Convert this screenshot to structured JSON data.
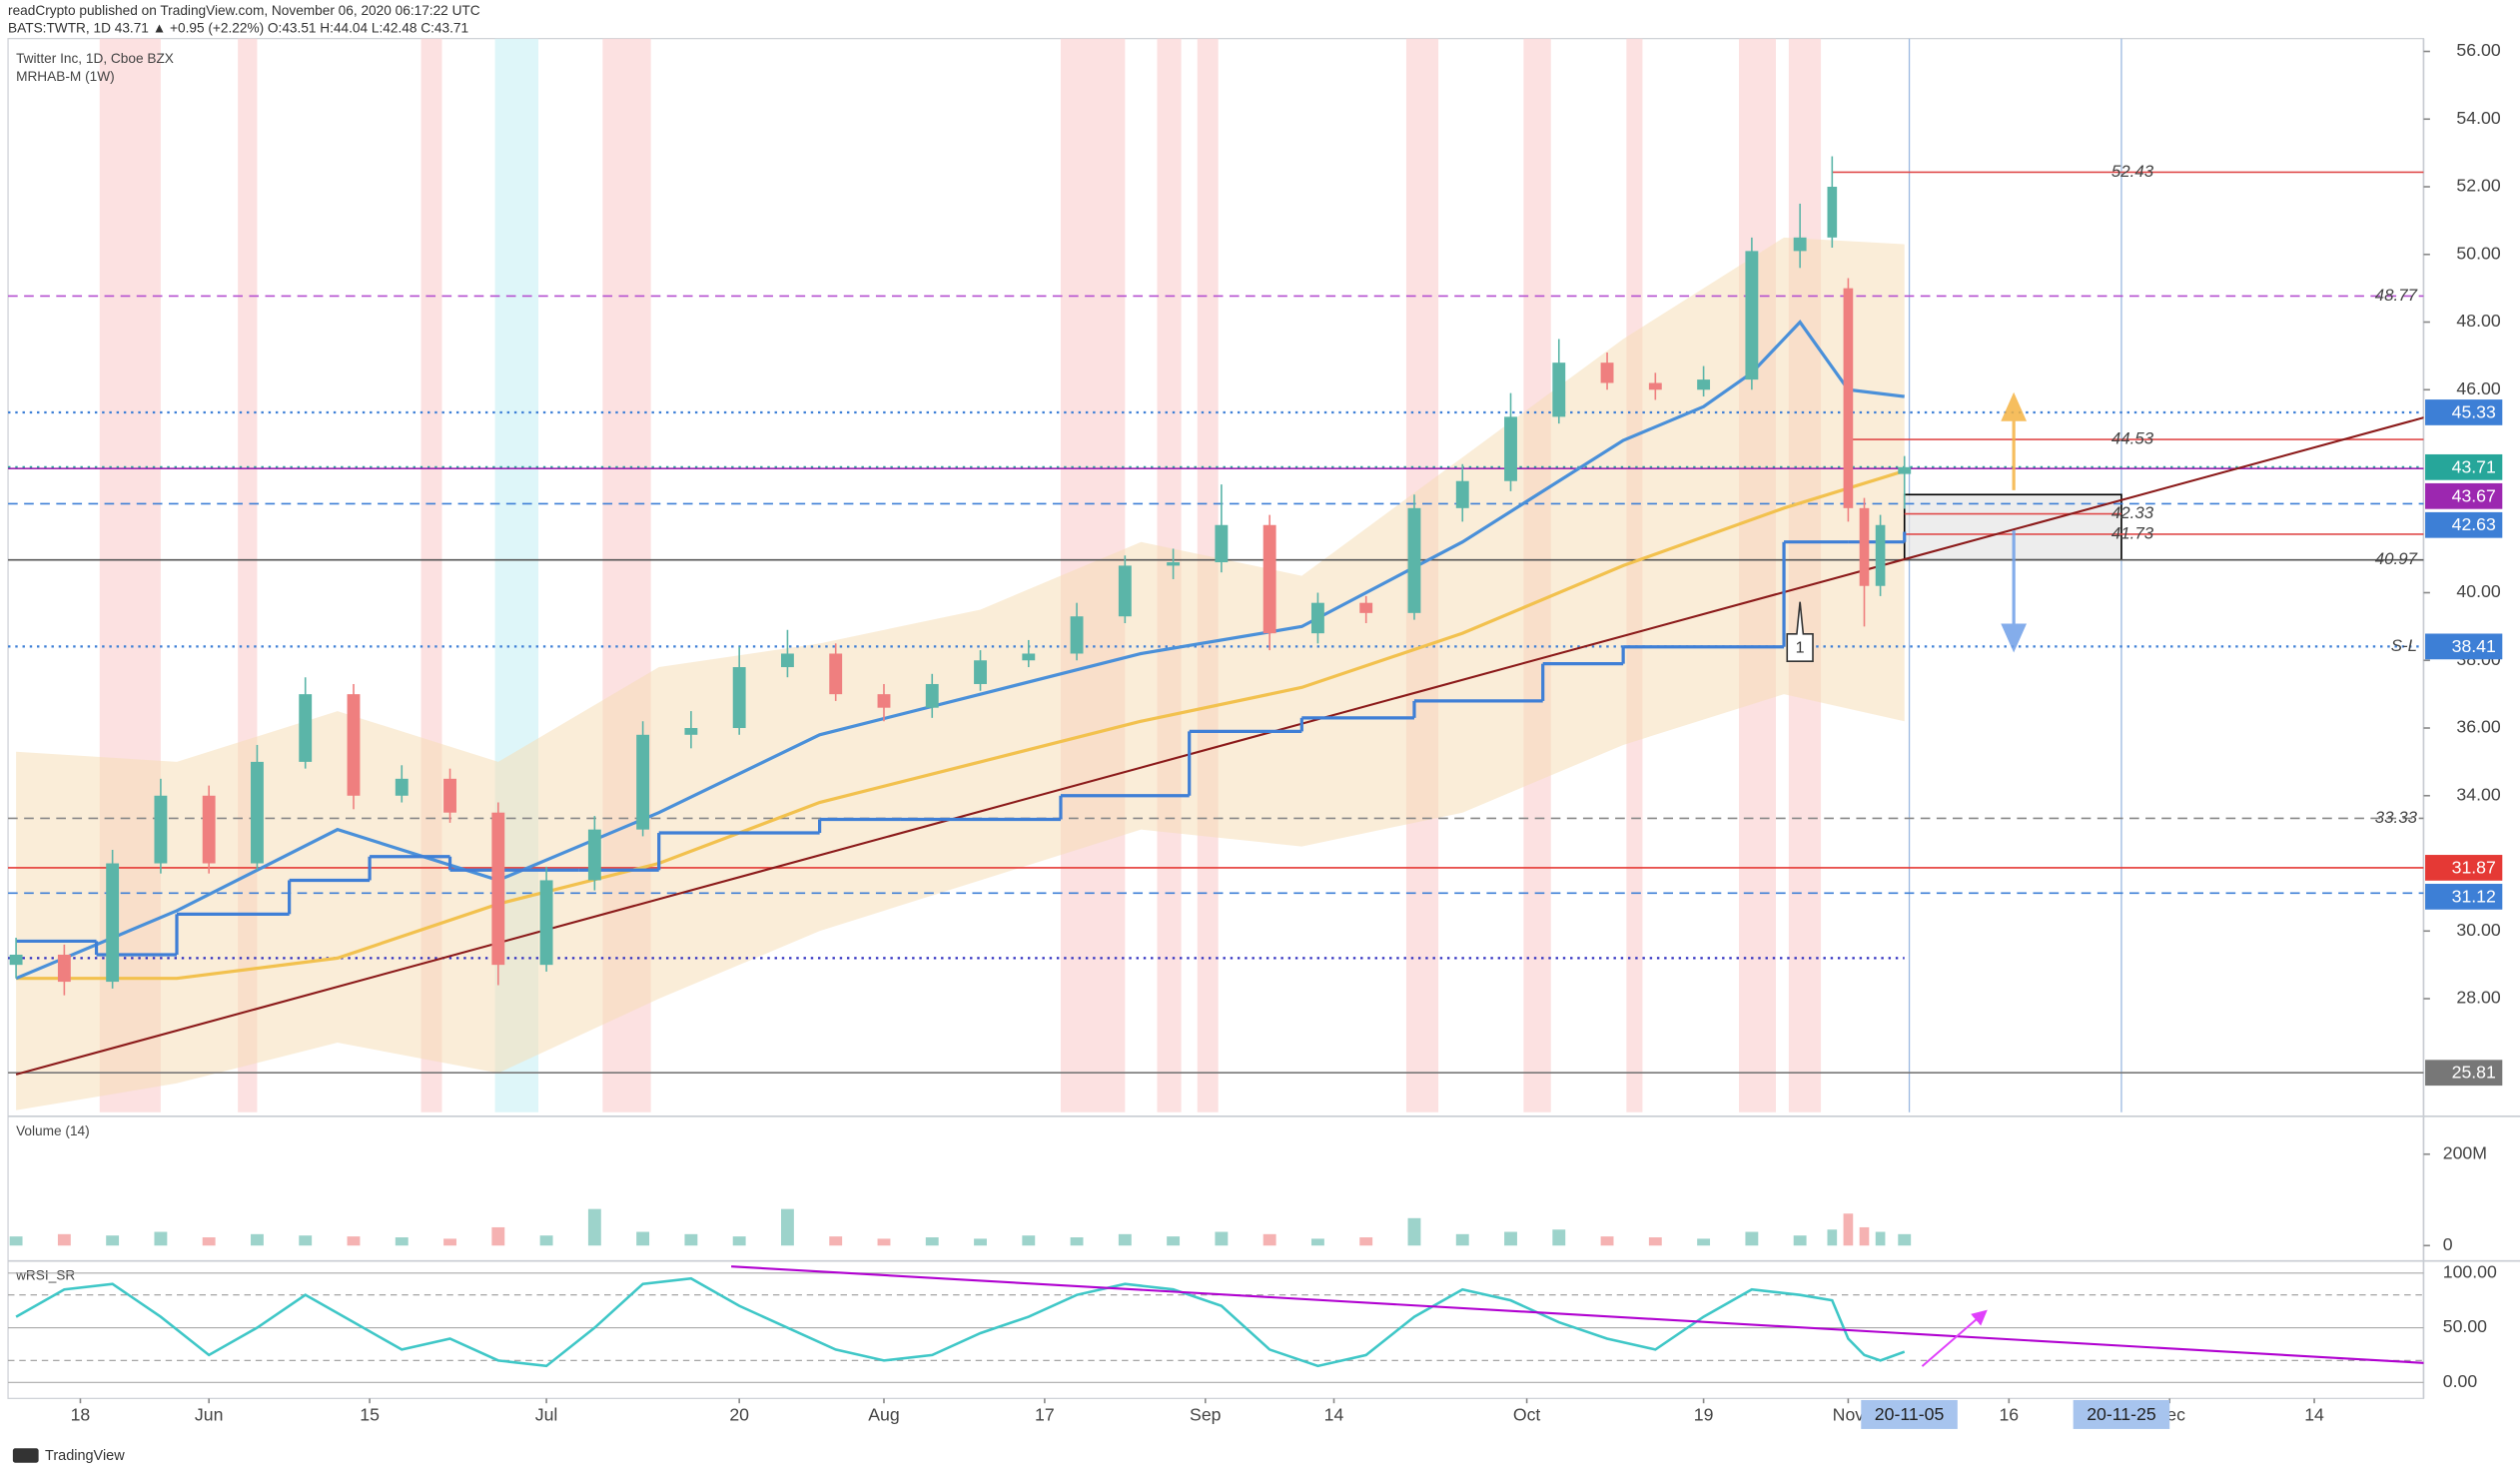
{
  "header": {
    "line1": "readCrypto published on TradingView.com, November 06, 2020 06:17:22 UTC",
    "line2": "BATS:TWTR, 1D 43.71 ▲ +0.95 (+2.22%) O:43.51 H:44.04 L:42.48 C:43.71"
  },
  "chart_data": {
    "type": "candlestick",
    "legend": [
      "Twitter Inc, 1D, Cboe BZX",
      "MRHAB-M (1W)"
    ],
    "xlim": [
      0,
      150
    ],
    "xticks": [
      {
        "value": 4,
        "label": "18"
      },
      {
        "value": 12,
        "label": "Jun"
      },
      {
        "value": 22,
        "label": "15"
      },
      {
        "value": 33,
        "label": "Jul"
      },
      {
        "value": 45,
        "label": "20"
      },
      {
        "value": 54,
        "label": "Aug"
      },
      {
        "value": 64,
        "label": "17"
      },
      {
        "value": 74,
        "label": "Sep"
      },
      {
        "value": 82,
        "label": "14"
      },
      {
        "value": 94,
        "label": "Oct"
      },
      {
        "value": 105,
        "label": "19"
      },
      {
        "value": 114,
        "label": "Nov"
      },
      {
        "value": 124,
        "label": "16"
      },
      {
        "value": 134,
        "label": "Dec"
      },
      {
        "value": 143,
        "label": "14"
      }
    ],
    "x_markers": [
      {
        "value": 117.8,
        "label": "20-11-05"
      },
      {
        "value": 131,
        "label": "20-11-25"
      }
    ],
    "ylim": [
      24.64,
      56.38
    ],
    "yticks": [
      {
        "value": 28,
        "label": "28.00"
      },
      {
        "value": 30,
        "label": "30.00"
      },
      {
        "value": 34,
        "label": "34.00"
      },
      {
        "value": 36,
        "label": "36.00"
      },
      {
        "value": 38,
        "label": "38.00"
      },
      {
        "value": 40,
        "label": "40.00"
      },
      {
        "value": 46,
        "label": "46.00"
      },
      {
        "value": 48,
        "label": "48.00"
      },
      {
        "value": 50,
        "label": "50.00"
      },
      {
        "value": 52,
        "label": "52.00"
      },
      {
        "value": 54,
        "label": "54.00"
      },
      {
        "value": 56,
        "label": "56.00"
      }
    ],
    "candles": {
      "up_color": "#5bb5a8",
      "down_color": "#ef7f7f",
      "x": [
        0,
        3,
        6,
        9,
        12,
        15,
        18,
        21,
        24,
        27,
        30,
        33,
        36,
        39,
        42,
        45,
        48,
        51,
        54,
        57,
        60,
        63,
        66,
        69,
        72,
        75,
        78,
        81,
        84,
        87,
        90,
        93,
        96,
        99,
        102,
        105,
        108,
        111,
        113,
        114,
        115,
        116,
        117.5
      ],
      "open": [
        29.0,
        29.3,
        28.5,
        32,
        34,
        32,
        35,
        37,
        34,
        34.5,
        33.5,
        29,
        31.5,
        33,
        35.8,
        36,
        37.8,
        38.2,
        37,
        36.6,
        37.3,
        38,
        38.2,
        39.3,
        40.8,
        40.9,
        42,
        38.8,
        39.7,
        39.4,
        42.5,
        43.3,
        45.2,
        46.8,
        46.2,
        46.0,
        46.3,
        50.1,
        50.5,
        49.0,
        42.5,
        40.2,
        43.51
      ],
      "high": [
        29.8,
        29.6,
        32.4,
        34.5,
        34.3,
        35.5,
        37.5,
        37.3,
        34.9,
        34.8,
        33.8,
        31.9,
        33.4,
        36.2,
        36.5,
        38.4,
        38.9,
        38.5,
        37.3,
        37.6,
        38.3,
        38.6,
        39.7,
        41.1,
        41.3,
        43.2,
        42.3,
        40.0,
        39.9,
        42.9,
        43.8,
        45.9,
        47.5,
        47.1,
        46.5,
        46.7,
        50.5,
        51.5,
        52.9,
        49.3,
        42.8,
        42.3,
        44.04
      ],
      "low": [
        28.6,
        28.1,
        28.3,
        31.7,
        31.7,
        31.8,
        34.8,
        33.6,
        33.8,
        33.2,
        28.4,
        28.8,
        31.2,
        32.8,
        35.4,
        35.8,
        37.5,
        36.8,
        36.2,
        36.3,
        37.1,
        37.8,
        38.0,
        39.1,
        40.4,
        40.6,
        38.3,
        38.5,
        39.1,
        39.2,
        42.1,
        43.0,
        45.0,
        46.0,
        45.7,
        45.8,
        46.0,
        49.6,
        50.2,
        42.1,
        39.0,
        39.9,
        42.48
      ],
      "close": [
        29.3,
        28.5,
        32,
        34,
        32,
        35,
        37,
        34,
        34.5,
        33.5,
        29,
        31.5,
        33,
        35.8,
        36,
        37.8,
        38.2,
        37,
        36.6,
        37.3,
        38,
        38.2,
        39.3,
        40.8,
        40.9,
        42,
        38.8,
        39.7,
        39.4,
        42.5,
        43.3,
        45.2,
        46.8,
        46.2,
        46.0,
        46.3,
        50.1,
        50.5,
        52.0,
        42.5,
        40.2,
        42.0,
        43.71
      ]
    },
    "band": {
      "color": "#f5deb8",
      "x": [
        0,
        10,
        20,
        30,
        40,
        50,
        60,
        70,
        80,
        90,
        100,
        110,
        117.5
      ],
      "upper": [
        35.3,
        35,
        36.5,
        35,
        37.8,
        38.5,
        39.5,
        41.5,
        40.5,
        44,
        47.5,
        50.5,
        50.3
      ],
      "lower": [
        24.7,
        25.5,
        26.7,
        25.8,
        28.0,
        30.0,
        31.5,
        33.0,
        32.5,
        33.5,
        35.5,
        37.0,
        36.2
      ]
    },
    "series": [
      {
        "color": "#f2c14e",
        "x": [
          0,
          10,
          20,
          30,
          40,
          50,
          60,
          70,
          80,
          90,
          100,
          110,
          117.5
        ],
        "values": [
          28.6,
          28.6,
          29.2,
          30.8,
          32.0,
          33.8,
          35.0,
          36.2,
          37.2,
          38.8,
          40.8,
          42.5,
          43.6
        ]
      },
      {
        "color": "#4a90d9",
        "x": [
          0,
          10,
          20,
          30,
          40,
          50,
          60,
          70,
          80,
          90,
          100,
          105,
          108,
          111,
          114,
          117.5
        ],
        "values": [
          28.6,
          30.6,
          33.0,
          31.5,
          33.5,
          35.8,
          37.0,
          38.2,
          39.0,
          41.5,
          44.5,
          45.5,
          46.5,
          48.0,
          46.0,
          45.8
        ]
      },
      {
        "color": "#3f7fd6",
        "step": true,
        "x": [
          0,
          5,
          10,
          17,
          22,
          27,
          35,
          40,
          50,
          55,
          65,
          73,
          80,
          87,
          95,
          100,
          110,
          114,
          117.5
        ],
        "values": [
          29.7,
          29.3,
          30.5,
          31.5,
          32.2,
          31.8,
          31.8,
          32.9,
          33.3,
          33.3,
          34.0,
          35.9,
          36.3,
          36.8,
          37.9,
          38.4,
          41.5,
          41.5,
          41.8
        ]
      }
    ],
    "signal_bands": [
      {
        "x": [
          5.2,
          9
        ],
        "color": "#fbd9d9"
      },
      {
        "x": [
          13.8,
          15
        ],
        "color": "#fbd9d9"
      },
      {
        "x": [
          25.2,
          26.5
        ],
        "color": "#fbd9d9"
      },
      {
        "x": [
          29.8,
          32.5
        ],
        "color": "#d6f4f7"
      },
      {
        "x": [
          36.5,
          39.5
        ],
        "color": "#fbd9d9"
      },
      {
        "x": [
          65,
          69
        ],
        "color": "#fbd9d9"
      },
      {
        "x": [
          71,
          72.5
        ],
        "color": "#fbd9d9"
      },
      {
        "x": [
          73.5,
          74.8
        ],
        "color": "#fbd9d9"
      },
      {
        "x": [
          86.5,
          88.5
        ],
        "color": "#fbd9d9"
      },
      {
        "x": [
          93.8,
          95.5
        ],
        "color": "#fbd9d9"
      },
      {
        "x": [
          100.2,
          101.2
        ],
        "color": "#fbd9d9"
      },
      {
        "x": [
          107.2,
          109.5
        ],
        "color": "#fbd9d9"
      },
      {
        "x": [
          110.3,
          112.3
        ],
        "color": "#fbd9d9"
      }
    ],
    "levels": [
      {
        "value": 52.43,
        "label": "52.43",
        "color": "#e04b4b",
        "style": "solid",
        "from": 113,
        "tag": "mid"
      },
      {
        "value": 48.77,
        "label": "48.77",
        "color": "#b44fd0",
        "style": "dashed",
        "tag": "right"
      },
      {
        "value": 45.33,
        "label": "45.33",
        "color": "#3d7fd6",
        "style": "dotted",
        "tag": "badge"
      },
      {
        "value": 44.53,
        "label": "44.53",
        "color": "#e04b4b",
        "style": "solid",
        "from": 114,
        "tag": "mid"
      },
      {
        "value": 43.71,
        "label": "43.71",
        "color": "#26a69a",
        "style": "dotted",
        "tag": "badge"
      },
      {
        "value": 43.67,
        "label": "43.67",
        "color": "#9c27b0",
        "style": "solid",
        "tag": "badge"
      },
      {
        "value": 42.63,
        "label": "42.63",
        "color": "#3d7fd6",
        "style": "dashed",
        "tag": "badge"
      },
      {
        "value": 42.33,
        "label": "42.33",
        "color": "#e04b4b",
        "style": "solid",
        "from": 117.5,
        "to": 131,
        "tag": "mid"
      },
      {
        "value": 41.73,
        "label": "41.73",
        "color": "#e04b4b",
        "style": "solid",
        "from": 117.5,
        "tag": "mid"
      },
      {
        "value": 40.97,
        "label": "40.97",
        "color": "#555555",
        "style": "solid",
        "tag": "right"
      },
      {
        "value": 38.41,
        "label": "38.41",
        "note": "S-L",
        "color": "#3d7fd6",
        "style": "dotted",
        "tag": "badge"
      },
      {
        "value": 33.33,
        "label": "33.33",
        "color": "#888888",
        "style": "dashed",
        "tag": "right"
      },
      {
        "value": 31.87,
        "label": "31.87",
        "color": "#e53935",
        "style": "solid",
        "tag": "badge"
      },
      {
        "value": 31.12,
        "label": "31.12",
        "color": "#3d7fd6",
        "style": "dashed",
        "tag": "badge"
      },
      {
        "value": 29.2,
        "color": "#3030c0",
        "style": "dotted",
        "to": 117.5
      },
      {
        "value": 25.81,
        "label": "25.81",
        "color": "#777777",
        "style": "solid",
        "tag": "badge"
      }
    ],
    "trendline": {
      "x": [
        0,
        150
      ],
      "y": [
        25.76,
        45.2
      ],
      "color": "#8b1a1a"
    },
    "box": {
      "x": [
        117.5,
        131
      ],
      "y": [
        40.97,
        42.9
      ]
    },
    "callout": {
      "label": "1",
      "x": 111,
      "y": 38.4
    },
    "volume": {
      "title": "Volume (14)",
      "ylim": [
        -25000000,
        274000000
      ],
      "yticks": [
        {
          "value": 200000000,
          "label": "200M"
        },
        0
      ],
      "values": [
        20000000,
        25000000,
        22000000,
        30000000,
        18000000,
        25000000,
        22000000,
        20000000,
        18000000,
        15000000,
        40000000,
        22000000,
        80000000,
        30000000,
        25000000,
        20000000,
        80000000,
        20000000,
        15000000,
        18000000,
        15000000,
        22000000,
        18000000,
        25000000,
        20000000,
        30000000,
        25000000,
        15000000,
        18000000,
        60000000,
        25000000,
        30000000,
        35000000,
        20000000,
        18000000,
        15000000,
        30000000,
        22000000,
        35000000,
        70000000,
        40000000,
        30000000,
        25000000
      ]
    },
    "rsi": {
      "title": "wRSI_SR",
      "ylim": [
        -14.7,
        108.8
      ],
      "yticks": [
        {
          "value": 100,
          "label": "100.00"
        },
        {
          "value": 50,
          "label": "50.00"
        },
        {
          "value": 0,
          "label": "0.00"
        }
      ],
      "guides": [
        20,
        80
      ],
      "color": "#3fc7c7",
      "values": [
        60,
        85,
        90,
        60,
        25,
        50,
        80,
        55,
        30,
        40,
        20,
        15,
        50,
        90,
        95,
        70,
        50,
        30,
        20,
        25,
        45,
        60,
        80,
        90,
        85,
        70,
        30,
        15,
        25,
        60,
        85,
        75,
        55,
        40,
        30,
        60,
        85,
        80,
        75,
        40,
        25,
        20,
        28
      ],
      "trendline": {
        "x": [
          44.5,
          150
        ],
        "y": [
          106,
          17.6
        ],
        "color": "#b000d0"
      }
    }
  },
  "footer": "TradingView"
}
